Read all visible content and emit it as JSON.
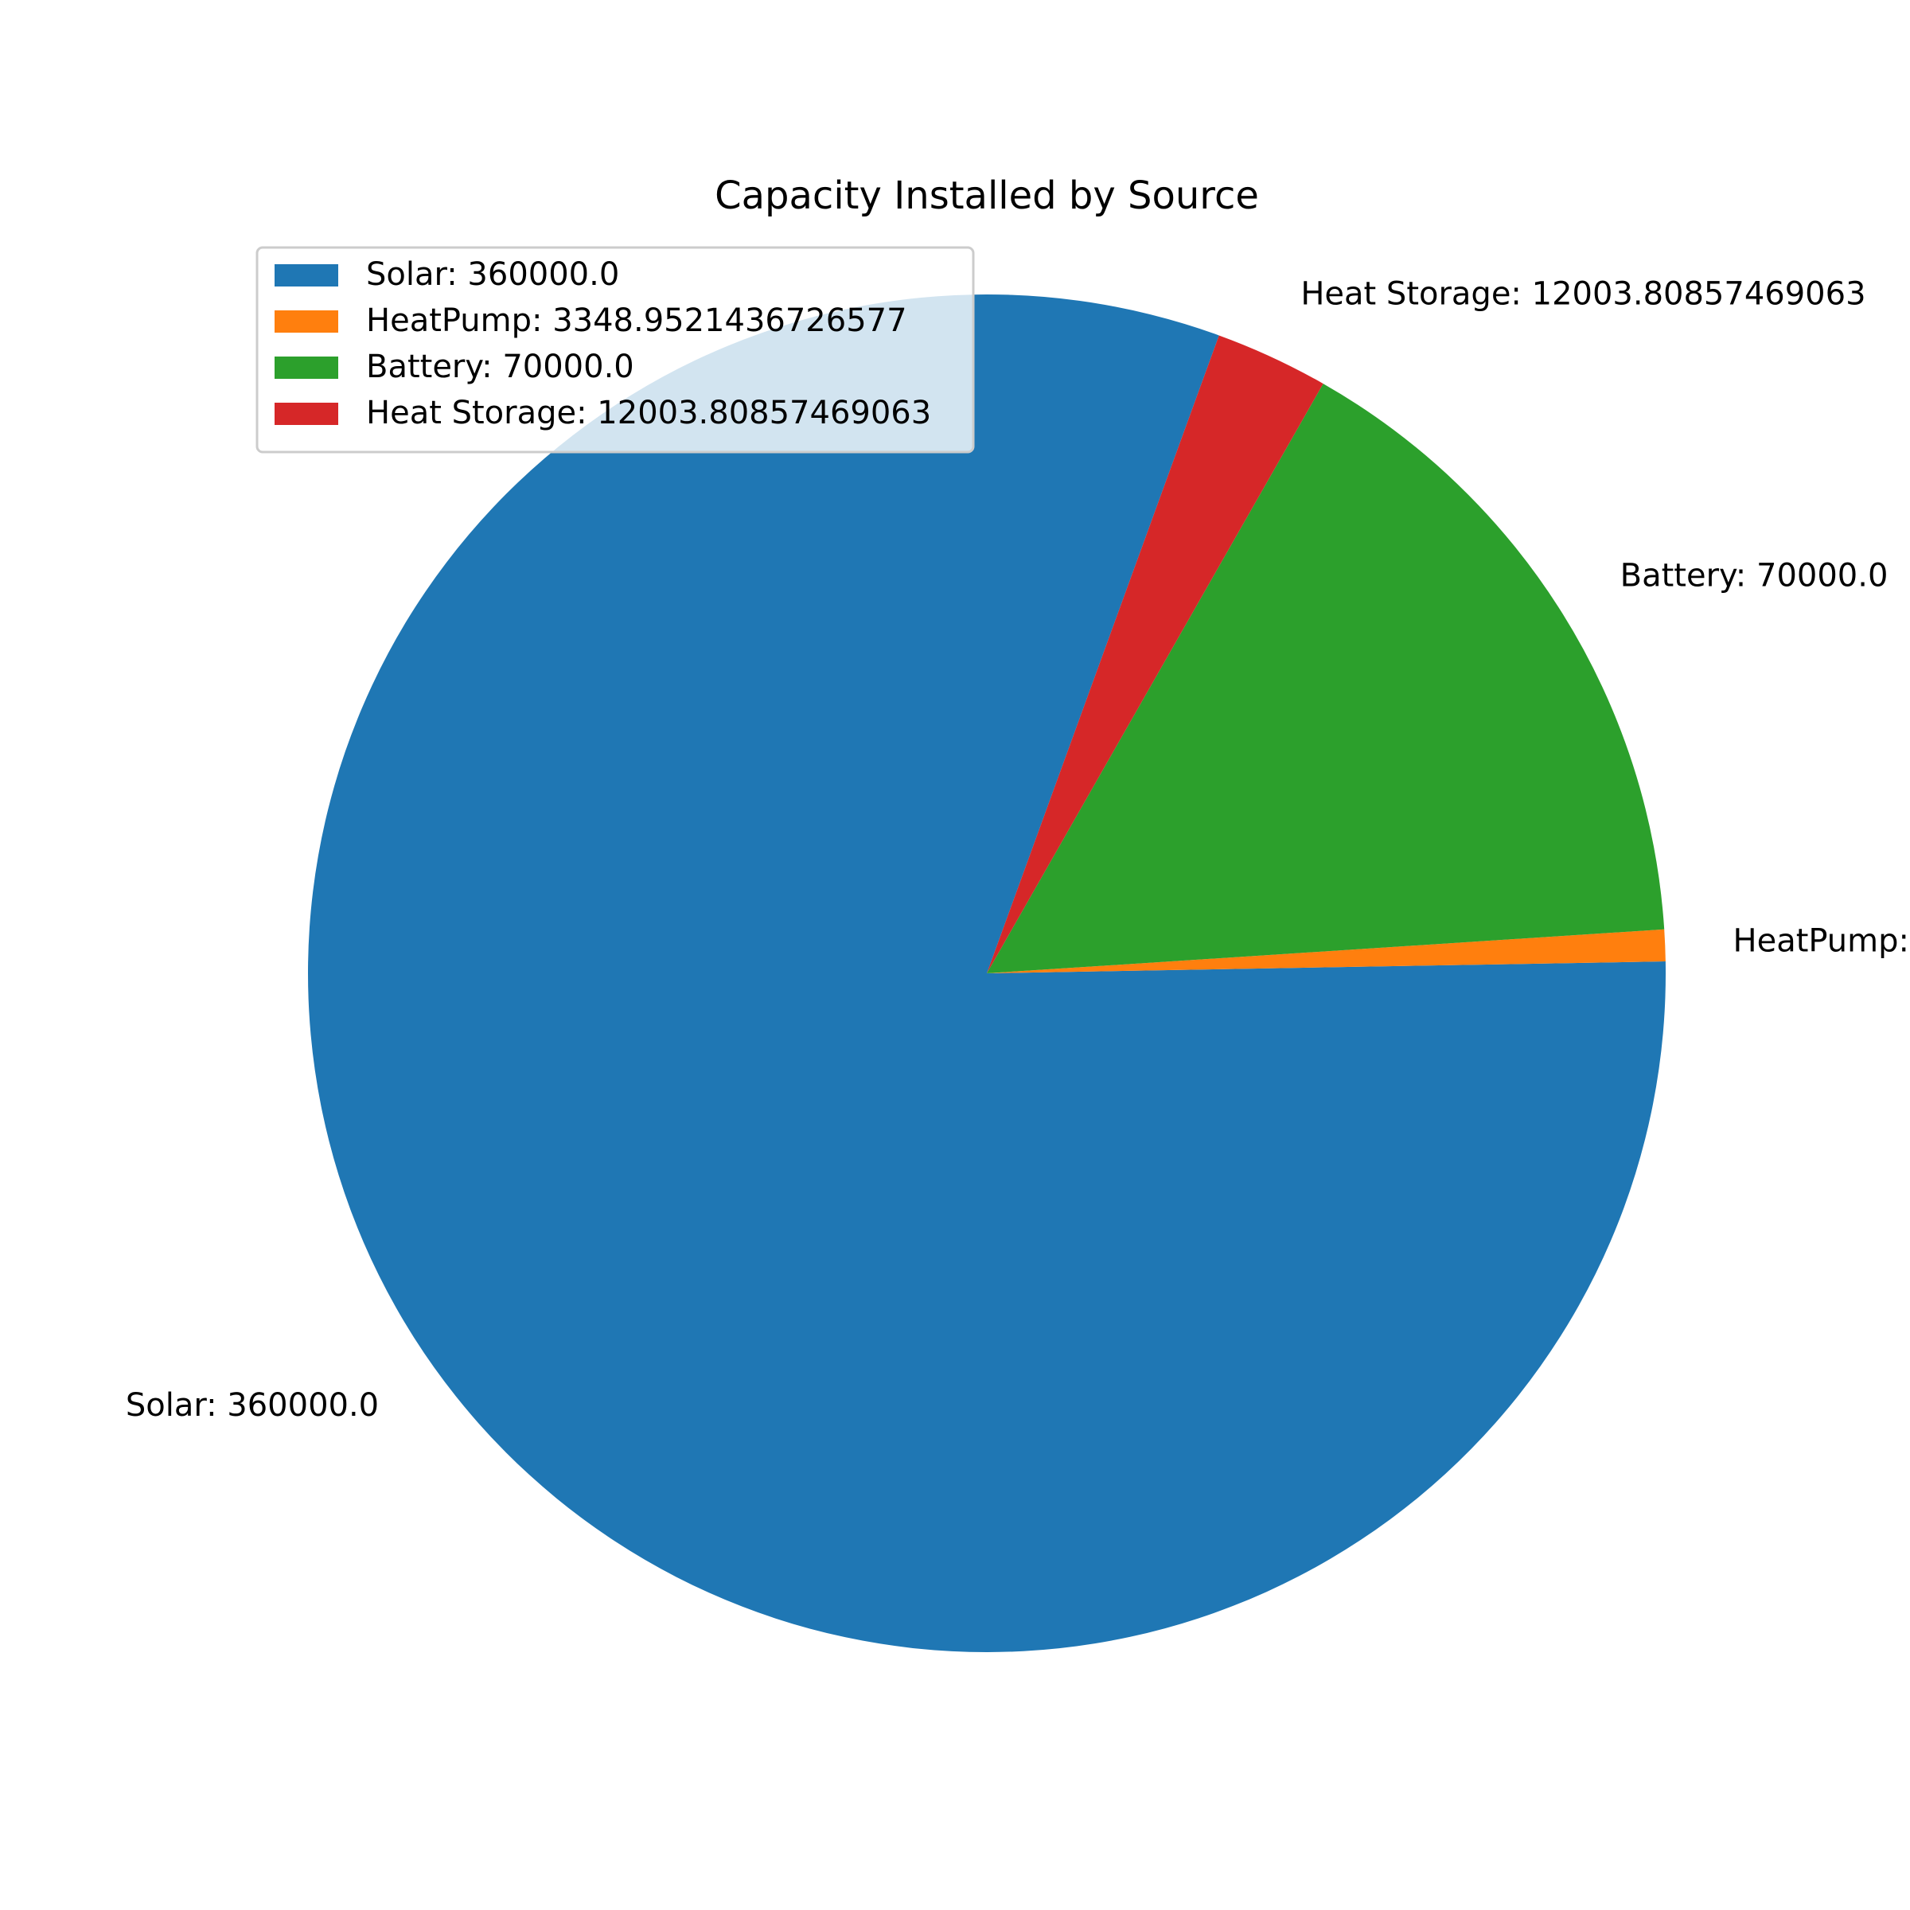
{
  "chart_data": {
    "type": "pie",
    "title": "Capacity Installed by Source",
    "start_angle_deg": 70,
    "direction": "counterclockwise",
    "slices": [
      {
        "name": "Solar",
        "value": 360000.0,
        "label": "Solar: 360000.0",
        "color": "#1f77b4"
      },
      {
        "name": "HeatPump",
        "value": 3348.9521436726577,
        "label": "HeatPump: 3348.9521436726577",
        "color": "#ff7f0e"
      },
      {
        "name": "Battery",
        "value": 70000.0,
        "label": "Battery: 70000.0",
        "color": "#2ca02c"
      },
      {
        "name": "Heat Storage",
        "value": 12003.80857469063,
        "label": "Heat Storage: 12003.80857469063",
        "color": "#d62728"
      }
    ],
    "legend": {
      "position": "upper-left",
      "entries": [
        "Solar: 360000.0",
        "HeatPump: 3348.9521436726577",
        "Battery: 70000.0",
        "Heat Storage: 12003.80857469063"
      ]
    }
  }
}
